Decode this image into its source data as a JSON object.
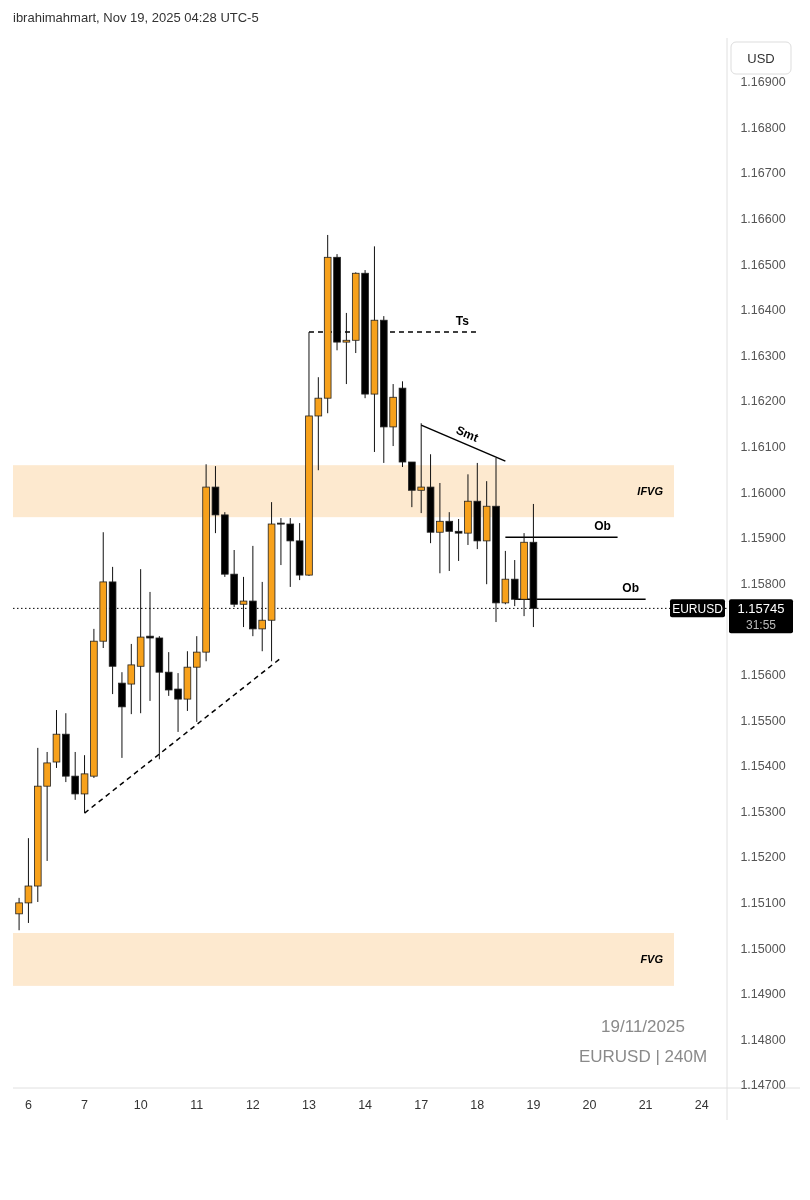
{
  "chart_data": {
    "type": "candlestick",
    "title": "ibrahimahmart, Nov 19, 2025 04:28 UTC-5",
    "ylabel": "USD",
    "categories": [
      null,
      "6",
      null,
      null,
      null,
      null,
      null,
      "7",
      null,
      null,
      null,
      null,
      null,
      "10",
      null,
      null,
      null,
      null,
      null,
      "11",
      null,
      null,
      null,
      null,
      null,
      "12",
      null,
      null,
      null,
      null,
      null,
      "13",
      null,
      null,
      null,
      null,
      null,
      "14",
      null,
      null,
      null,
      null,
      null,
      "17",
      null,
      null,
      null,
      null,
      null,
      "18",
      null,
      null,
      null,
      null,
      null,
      "19",
      null,
      null,
      null,
      null,
      null,
      "20",
      null,
      null,
      null,
      null,
      null,
      "21",
      null,
      null,
      null,
      null,
      null,
      "24",
      null,
      null
    ],
    "ylim": [
      1.14693,
      1.16996
    ],
    "yticks": [
      {
        "value": 1.147,
        "label": "1.14700"
      },
      {
        "value": 1.148,
        "label": "1.14800"
      },
      {
        "value": 1.149,
        "label": "1.14900"
      },
      {
        "value": 1.15,
        "label": "1.15000"
      },
      {
        "value": 1.151,
        "label": "1.15100"
      },
      {
        "value": 1.152,
        "label": "1.15200"
      },
      {
        "value": 1.153,
        "label": "1.15300"
      },
      {
        "value": 1.154,
        "label": "1.15400"
      },
      {
        "value": 1.155,
        "label": "1.15500"
      },
      {
        "value": 1.156,
        "label": "1.15600"
      },
      {
        "value": 1.158,
        "label": "1.15800"
      },
      {
        "value": 1.159,
        "label": "1.15900"
      },
      {
        "value": 1.16,
        "label": "1.16000"
      },
      {
        "value": 1.161,
        "label": "1.16100"
      },
      {
        "value": 1.162,
        "label": "1.16200"
      },
      {
        "value": 1.163,
        "label": "1.16300"
      },
      {
        "value": 1.164,
        "label": "1.16400"
      },
      {
        "value": 1.165,
        "label": "1.16500"
      },
      {
        "value": 1.166,
        "label": "1.16600"
      },
      {
        "value": 1.167,
        "label": "1.16700"
      },
      {
        "value": 1.168,
        "label": "1.16800"
      },
      {
        "value": 1.169,
        "label": "1.16900"
      }
    ],
    "ohlc": [
      [
        1.15075,
        1.1511,
        1.15039,
        1.15099
      ],
      [
        1.15099,
        1.15241,
        1.15055,
        1.15136
      ],
      [
        1.15136,
        1.15439,
        1.15101,
        1.15355
      ],
      [
        1.15355,
        1.1543,
        1.15191,
        1.15406
      ],
      [
        1.15408,
        1.15522,
        1.15395,
        1.15469
      ],
      [
        1.15469,
        1.15515,
        1.15364,
        1.15377
      ],
      [
        1.15377,
        1.1543,
        1.15325,
        1.15338
      ],
      [
        1.15338,
        1.15423,
        1.15296,
        1.15382
      ],
      [
        1.15377,
        1.157,
        1.15373,
        1.15673
      ],
      [
        1.15673,
        1.15912,
        1.15658,
        1.15803
      ],
      [
        1.15803,
        1.15836,
        1.15557,
        1.15618
      ],
      [
        1.15581,
        1.15605,
        1.15417,
        1.15529
      ],
      [
        1.15579,
        1.15667,
        1.15513,
        1.15621
      ],
      [
        1.15618,
        1.15831,
        1.15515,
        1.15682
      ],
      [
        1.15684,
        1.15781,
        1.15542,
        1.1568
      ],
      [
        1.1568,
        1.15684,
        1.15414,
        1.15605
      ],
      [
        1.15605,
        1.15649,
        1.15553,
        1.15566
      ],
      [
        1.15568,
        1.15603,
        1.15474,
        1.15546
      ],
      [
        1.15546,
        1.15651,
        1.1552,
        1.15616
      ],
      [
        1.15616,
        1.15684,
        1.15496,
        1.15649
      ],
      [
        1.15649,
        1.16061,
        1.15629,
        1.16011
      ],
      [
        1.16011,
        1.16057,
        1.1591,
        1.1595
      ],
      [
        1.1595,
        1.15956,
        1.15814,
        1.1582
      ],
      [
        1.1582,
        1.15873,
        1.15748,
        1.15754
      ],
      [
        1.15754,
        1.15814,
        1.15704,
        1.15761
      ],
      [
        1.15761,
        1.15882,
        1.15684,
        1.157
      ],
      [
        1.157,
        1.15803,
        1.15651,
        1.15719
      ],
      [
        1.15719,
        1.15978,
        1.15629,
        1.1593
      ],
      [
        1.15932,
        1.15943,
        1.1584,
        1.1593
      ],
      [
        1.1593,
        1.15943,
        1.15792,
        1.15893
      ],
      [
        1.15893,
        1.15932,
        1.15807,
        1.15818
      ],
      [
        1.15818,
        1.16351,
        1.15816,
        1.16167
      ],
      [
        1.16167,
        1.16252,
        1.16048,
        1.16206
      ],
      [
        1.16206,
        1.16564,
        1.16173,
        1.16515
      ],
      [
        1.16515,
        1.16522,
        1.16311,
        1.16329
      ],
      [
        1.16329,
        1.16393,
        1.16237,
        1.16333
      ],
      [
        1.16333,
        1.16482,
        1.16305,
        1.1648
      ],
      [
        1.1648,
        1.16487,
        1.16206,
        1.16215
      ],
      [
        1.16215,
        1.16539,
        1.16088,
        1.16377
      ],
      [
        1.16377,
        1.16386,
        1.16064,
        1.16143
      ],
      [
        1.16143,
        1.16237,
        1.16101,
        1.16208
      ],
      [
        1.16228,
        1.16243,
        1.16055,
        1.16066
      ],
      [
        1.16066,
        1.16066,
        1.15967,
        1.16004
      ],
      [
        1.16004,
        1.16151,
        1.15954,
        1.16011
      ],
      [
        1.16011,
        1.16083,
        1.15888,
        1.15912
      ],
      [
        1.15912,
        1.1602,
        1.15822,
        1.15936
      ],
      [
        1.15936,
        1.15956,
        1.15827,
        1.15914
      ],
      [
        1.15914,
        1.15941,
        1.15849,
        1.1591
      ],
      [
        1.1591,
        1.16039,
        1.15884,
        1.1598
      ],
      [
        1.1598,
        1.16064,
        1.15875,
        1.15893
      ],
      [
        1.15893,
        1.16024,
        1.15798,
        1.15969
      ],
      [
        1.15969,
        1.16075,
        1.15715,
        1.15757
      ],
      [
        1.15757,
        1.15871,
        1.15754,
        1.15809
      ],
      [
        1.15809,
        1.15851,
        1.1575,
        1.15765
      ],
      [
        1.15765,
        1.1591,
        1.15728,
        1.1589
      ],
      [
        1.1589,
        1.15974,
        1.15704,
        1.15745
      ],
      null,
      null,
      null,
      null,
      null,
      null,
      null,
      null,
      null,
      null,
      null,
      null,
      null,
      null,
      null,
      null,
      null,
      null,
      null,
      null
    ],
    "colors": [
      "#f7a11b",
      "#f7a11b",
      "#f7a11b",
      "#f7a11b",
      "#f7a11b",
      "#000000",
      "#000000",
      "#f7a11b",
      "#f7a11b",
      "#f7a11b",
      "#000000",
      "#000000",
      "#f7a11b",
      "#f7a11b",
      "#000000",
      "#000000",
      "#000000",
      "#000000",
      "#f7a11b",
      "#f7a11b",
      "#f7a11b",
      "#000000",
      "#000000",
      "#000000",
      "#f7a11b",
      "#000000",
      "#f7a11b",
      "#f7a11b",
      "#000000",
      "#000000",
      "#000000",
      "#f7a11b",
      "#f7a11b",
      "#f7a11b",
      "#000000",
      "#f7a11b",
      "#f7a11b",
      "#000000",
      "#f7a11b",
      "#000000",
      "#f7a11b",
      "#000000",
      "#000000",
      "#f7a11b",
      "#000000",
      "#f7a11b",
      "#000000",
      "#000000",
      "#f7a11b",
      "#000000",
      "#f7a11b",
      "#000000",
      "#f7a11b",
      "#000000",
      "#f7a11b",
      "#000000",
      null,
      null,
      null,
      null,
      null,
      null,
      null,
      null,
      null,
      null,
      null,
      null,
      null,
      null,
      null,
      null,
      null,
      null,
      null,
      null
    ],
    "series": [
      {
        "type": "line",
        "color": "#000000",
        "line_style": "dashed",
        "values": [
          null,
          null,
          null,
          null,
          null,
          null,
          null,
          1.15296,
          null,
          null,
          null,
          null,
          null,
          null,
          null,
          null,
          null,
          null,
          null,
          null,
          null,
          null,
          null,
          null,
          null,
          null,
          null,
          null,
          1.15636,
          null,
          null,
          null,
          null,
          null,
          null,
          null,
          null,
          null,
          null,
          null,
          null,
          null,
          null,
          null,
          null,
          null,
          null,
          null,
          null,
          null,
          null,
          null,
          null,
          null,
          null,
          null,
          null,
          null,
          null,
          null,
          null,
          null,
          null,
          null,
          null,
          null,
          null,
          null,
          null,
          null,
          null,
          null,
          null,
          null,
          null,
          null
        ]
      },
      {
        "type": "line",
        "name": "Ts",
        "color": "#000000",
        "line_style": "dashed",
        "values": [
          null,
          null,
          null,
          null,
          null,
          null,
          null,
          null,
          null,
          null,
          null,
          null,
          null,
          null,
          null,
          null,
          null,
          null,
          null,
          null,
          null,
          null,
          null,
          null,
          null,
          null,
          null,
          null,
          null,
          null,
          null,
          1.16351,
          null,
          null,
          null,
          null,
          null,
          null,
          null,
          null,
          null,
          null,
          null,
          null,
          null,
          null,
          null,
          null,
          null,
          1.16351,
          null,
          null,
          null,
          null,
          null,
          null,
          null,
          null,
          null,
          null,
          null,
          null,
          null,
          null,
          null,
          null,
          null,
          null,
          null,
          null,
          null,
          null,
          null,
          null,
          null,
          null
        ]
      },
      {
        "type": "line",
        "name": "Smt",
        "color": "#000000",
        "line_style": "solid",
        "values": [
          null,
          null,
          null,
          null,
          null,
          null,
          null,
          null,
          null,
          null,
          null,
          null,
          null,
          null,
          null,
          null,
          null,
          null,
          null,
          null,
          null,
          null,
          null,
          null,
          null,
          null,
          null,
          null,
          null,
          null,
          null,
          null,
          null,
          null,
          null,
          null,
          null,
          null,
          null,
          null,
          null,
          null,
          null,
          1.16147,
          null,
          null,
          null,
          null,
          null,
          null,
          null,
          null,
          1.16068,
          null,
          null,
          null,
          null,
          null,
          null,
          null,
          null,
          null,
          null,
          null,
          null,
          null,
          null,
          null,
          null,
          null,
          null,
          null,
          null,
          null,
          null,
          null
        ]
      },
      {
        "type": "line",
        "name": "Ob",
        "color": "#000000",
        "line_style": "solid",
        "values": [
          null,
          null,
          null,
          null,
          null,
          null,
          null,
          null,
          null,
          null,
          null,
          null,
          null,
          null,
          null,
          null,
          null,
          null,
          null,
          null,
          null,
          null,
          null,
          null,
          null,
          null,
          null,
          null,
          null,
          null,
          null,
          null,
          null,
          null,
          null,
          null,
          null,
          null,
          null,
          null,
          null,
          null,
          null,
          null,
          null,
          null,
          null,
          null,
          null,
          null,
          null,
          null,
          1.15901,
          null,
          null,
          null,
          null,
          null,
          null,
          null,
          null,
          null,
          null,
          null,
          1.15901,
          null,
          null,
          null,
          null,
          null,
          null,
          null,
          null,
          null,
          null,
          null
        ]
      },
      {
        "type": "line",
        "name": "Ob",
        "color": "#000000",
        "line_style": "solid",
        "values": [
          null,
          null,
          null,
          null,
          null,
          null,
          null,
          null,
          null,
          null,
          null,
          null,
          null,
          null,
          null,
          null,
          null,
          null,
          null,
          null,
          null,
          null,
          null,
          null,
          null,
          null,
          null,
          null,
          null,
          null,
          null,
          null,
          null,
          null,
          null,
          null,
          null,
          null,
          null,
          null,
          null,
          null,
          null,
          null,
          null,
          null,
          null,
          null,
          null,
          null,
          null,
          null,
          null,
          1.15765,
          null,
          null,
          null,
          null,
          null,
          null,
          null,
          null,
          null,
          null,
          null,
          null,
          null,
          1.15765,
          null,
          null,
          null,
          null,
          null,
          null,
          null,
          null
        ]
      }
    ],
    "bands": [
      {
        "axis": "y",
        "from": 1.15945,
        "to": 1.16059,
        "label": "IFVG",
        "color": "#fde9cf"
      },
      {
        "axis": "y",
        "from": 1.14917,
        "to": 1.15033,
        "label": "FVG",
        "color": "#fde9cf"
      }
    ],
    "ref_lines": [
      {
        "axis": "y",
        "value": 1.15745,
        "label": "EURUSD",
        "color": "#000000",
        "line_style": "dotted"
      }
    ],
    "annotations": [
      "1.15745",
      "31:55",
      "19/11/2025",
      "EURUSD | 240M"
    ]
  }
}
